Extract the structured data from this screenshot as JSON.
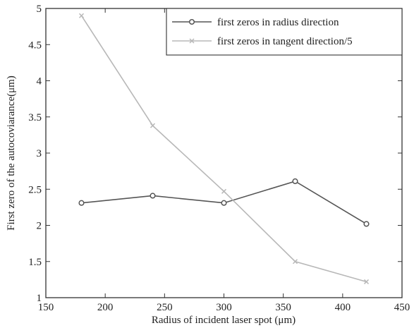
{
  "chart_data": {
    "type": "line",
    "xlabel": "Radius of incident laser spot (μm)",
    "ylabel": "First zero of the autocoviarance(μm)",
    "xlim": [
      150,
      450
    ],
    "ylim": [
      1,
      5
    ],
    "xticks": [
      150,
      200,
      250,
      300,
      350,
      400,
      450
    ],
    "yticks": [
      1,
      1.5,
      2,
      2.5,
      3,
      3.5,
      4,
      4.5,
      5
    ],
    "xtick_labels": [
      "150",
      "200",
      "250",
      "300",
      "350",
      "400",
      "450"
    ],
    "ytick_labels": [
      "1",
      "1.5",
      "2",
      "2.5",
      "3",
      "3.5",
      "4",
      "4.5",
      "5"
    ],
    "grid": false,
    "legend_position": "top-right",
    "series": [
      {
        "name": "first zeros in radius direction",
        "color": "#555555",
        "marker": "circle",
        "x": [
          180,
          240,
          300,
          360,
          420
        ],
        "y": [
          2.31,
          2.41,
          2.31,
          2.61,
          2.02
        ]
      },
      {
        "name": "first zeros in tangent direction/5",
        "color": "#b8b8b8",
        "marker": "x",
        "x": [
          180,
          240,
          300,
          360,
          420
        ],
        "y": [
          4.9,
          3.38,
          2.47,
          1.5,
          1.22
        ]
      }
    ]
  }
}
